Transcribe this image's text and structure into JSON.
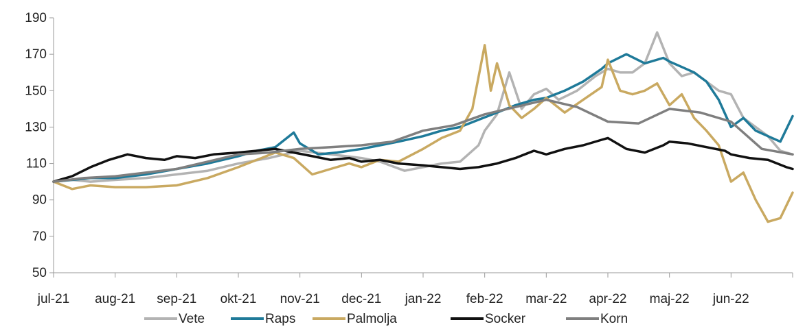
{
  "chart_data": {
    "type": "line",
    "title": "",
    "xlabel": "",
    "ylabel": "",
    "ylim": [
      50,
      190
    ],
    "yticks": [
      50,
      70,
      90,
      110,
      130,
      150,
      170,
      190
    ],
    "xlim": [
      0,
      12
    ],
    "categories": [
      "jul-21",
      "aug-21",
      "sep-21",
      "okt-21",
      "nov-21",
      "dec-21",
      "jan-22",
      "feb-22",
      "mar-22",
      "apr-22",
      "maj-22",
      "jun-22"
    ],
    "grid": false,
    "legend_position": "bottom",
    "series": [
      {
        "name": "Vete",
        "color": "#b3b3b3",
        "x": [
          0,
          0.3,
          0.6,
          1.0,
          1.5,
          2.0,
          2.5,
          3.0,
          3.5,
          4.0,
          4.5,
          5.0,
          5.3,
          5.7,
          6.0,
          6.3,
          6.6,
          6.9,
          7.0,
          7.2,
          7.4,
          7.6,
          7.8,
          8.0,
          8.2,
          8.5,
          8.8,
          9.0,
          9.2,
          9.4,
          9.6,
          9.8,
          10.0,
          10.2,
          10.4,
          10.6,
          10.8,
          11.0,
          11.2,
          11.4,
          11.6,
          11.8,
          12.0
        ],
        "values": [
          100,
          101,
          100,
          101,
          102,
          104,
          106,
          110,
          113,
          117,
          115,
          113,
          111,
          106,
          108,
          110,
          111,
          120,
          128,
          137,
          160,
          140,
          148,
          151,
          145,
          150,
          158,
          162,
          160,
          160,
          165,
          182,
          165,
          158,
          160,
          155,
          150,
          148,
          135,
          130,
          125,
          117,
          115
        ]
      },
      {
        "name": "Raps",
        "color": "#1f7a99",
        "x": [
          0,
          0.3,
          0.6,
          1.0,
          1.5,
          2.0,
          2.5,
          3.0,
          3.3,
          3.6,
          3.9,
          4.0,
          4.3,
          4.6,
          5.0,
          5.3,
          5.6,
          6.0,
          6.3,
          6.6,
          6.9,
          7.2,
          7.5,
          7.8,
          8.0,
          8.3,
          8.6,
          8.9,
          9.0,
          9.3,
          9.6,
          9.9,
          10.0,
          10.2,
          10.4,
          10.6,
          10.8,
          11.0,
          11.2,
          11.4,
          11.6,
          11.8,
          12.0
        ],
        "values": [
          100,
          101,
          102,
          102,
          104,
          107,
          110,
          114,
          117,
          119,
          127,
          121,
          115,
          116,
          118,
          120,
          122,
          125,
          128,
          130,
          134,
          138,
          142,
          145,
          146,
          150,
          155,
          162,
          165,
          170,
          165,
          168,
          166,
          163,
          160,
          155,
          145,
          130,
          135,
          128,
          125,
          122,
          136
        ]
      },
      {
        "name": "Palmolja",
        "color": "#c9a961",
        "x": [
          0,
          0.3,
          0.6,
          1.0,
          1.5,
          2.0,
          2.5,
          3.0,
          3.3,
          3.6,
          3.9,
          4.0,
          4.2,
          4.5,
          4.8,
          5.0,
          5.3,
          5.6,
          6.0,
          6.3,
          6.6,
          6.8,
          7.0,
          7.1,
          7.2,
          7.4,
          7.6,
          7.8,
          8.0,
          8.3,
          8.6,
          8.9,
          9.0,
          9.2,
          9.4,
          9.6,
          9.8,
          10.0,
          10.2,
          10.4,
          10.6,
          10.8,
          11.0,
          11.2,
          11.4,
          11.6,
          11.8,
          12.0
        ],
        "values": [
          100,
          96,
          98,
          97,
          97,
          98,
          102,
          108,
          112,
          116,
          113,
          110,
          104,
          107,
          110,
          108,
          112,
          111,
          118,
          124,
          128,
          140,
          175,
          150,
          165,
          142,
          135,
          140,
          146,
          138,
          145,
          152,
          167,
          150,
          148,
          150,
          154,
          142,
          148,
          135,
          128,
          120,
          100,
          105,
          90,
          78,
          80,
          94
        ]
      },
      {
        "name": "Socker",
        "color": "#111111",
        "x": [
          0,
          0.3,
          0.6,
          0.9,
          1.2,
          1.5,
          1.8,
          2.0,
          2.3,
          2.6,
          3.0,
          3.3,
          3.6,
          3.9,
          4.2,
          4.5,
          4.8,
          5.0,
          5.3,
          5.6,
          6.0,
          6.3,
          6.6,
          6.9,
          7.2,
          7.5,
          7.8,
          8.0,
          8.3,
          8.6,
          8.9,
          9.0,
          9.3,
          9.6,
          9.9,
          10.0,
          10.3,
          10.6,
          10.9,
          11.0,
          11.3,
          11.6,
          11.9,
          12.0
        ],
        "values": [
          100,
          103,
          108,
          112,
          115,
          113,
          112,
          114,
          113,
          115,
          116,
          117,
          118,
          116,
          114,
          112,
          113,
          111,
          112,
          110,
          109,
          108,
          107,
          108,
          110,
          113,
          117,
          115,
          118,
          120,
          123,
          124,
          118,
          116,
          120,
          122,
          121,
          119,
          117,
          115,
          113,
          112,
          108,
          107
        ]
      },
      {
        "name": "Korn",
        "color": "#7f7f7f",
        "x": [
          0,
          0.5,
          1.0,
          1.5,
          2.0,
          2.5,
          3.0,
          3.5,
          4.0,
          4.5,
          5.0,
          5.5,
          6.0,
          6.5,
          7.0,
          7.5,
          8.0,
          8.5,
          9.0,
          9.5,
          10.0,
          10.5,
          11.0,
          11.5,
          12.0
        ],
        "values": [
          100,
          102,
          103,
          105,
          107,
          111,
          115,
          116,
          118,
          119,
          120,
          122,
          128,
          131,
          137,
          141,
          145,
          141,
          133,
          132,
          140,
          138,
          133,
          118,
          115
        ]
      }
    ]
  }
}
